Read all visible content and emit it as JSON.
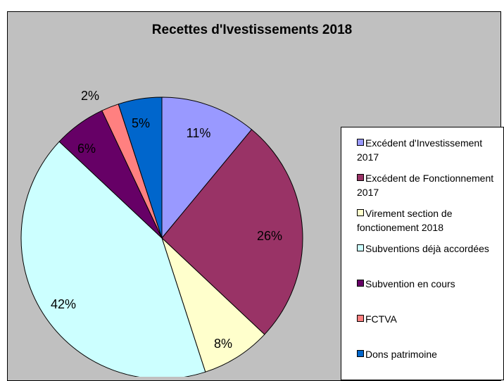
{
  "chart_data": {
    "type": "pie",
    "title": "Recettes d'Ivestissements 2018",
    "slices": [
      {
        "label": "Excédent d'Investissement 2017",
        "value": 11,
        "value_label": "11%",
        "color": "#9999ff"
      },
      {
        "label": "Excédent de Fonctionnement 2017",
        "value": 26,
        "value_label": "26%",
        "color": "#993366"
      },
      {
        "label": "Virement section de fonctionement 2018",
        "value": 8,
        "value_label": "8%",
        "color": "#ffffcc"
      },
      {
        "label": "Subventions déjà accordées",
        "value": 42,
        "value_label": "42%",
        "color": "#ccffff"
      },
      {
        "label": "Subvention en cours",
        "value": 6,
        "value_label": "6%",
        "color": "#660066"
      },
      {
        "label": "FCTVA",
        "value": 2,
        "value_label": "2%",
        "color": "#ff8080"
      },
      {
        "label": "Dons patrimoine",
        "value": 5,
        "value_label": "5%",
        "color": "#0066cc"
      }
    ],
    "legend_placement": "right"
  }
}
